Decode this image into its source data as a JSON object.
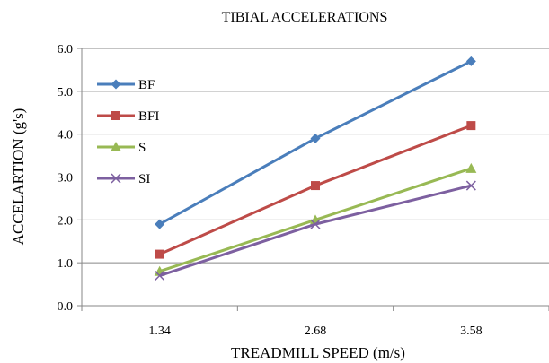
{
  "chart_data": {
    "type": "line",
    "title": "TIBIAL ACCELERATIONS",
    "xlabel": "TREADMILL SPEED (m/s)",
    "ylabel": "ACCELARTION (g's)",
    "categories": [
      "1.34",
      "2.68",
      "3.58"
    ],
    "ylim": [
      0,
      6
    ],
    "yticks": [
      "0.0",
      "1.0",
      "2.0",
      "3.0",
      "4.0",
      "5.0",
      "6.0"
    ],
    "grid": true,
    "legend": "top-left",
    "series": [
      {
        "name": "BF",
        "values": [
          1.9,
          3.9,
          5.7
        ],
        "color": "#4a7ebb",
        "marker": "diamond"
      },
      {
        "name": "BFI",
        "values": [
          1.2,
          2.8,
          4.2
        ],
        "color": "#be4b48",
        "marker": "square"
      },
      {
        "name": "S",
        "values": [
          0.8,
          2.0,
          3.2
        ],
        "color": "#98b954",
        "marker": "triangle"
      },
      {
        "name": "SI",
        "values": [
          0.7,
          1.9,
          2.8
        ],
        "color": "#7d60a0",
        "marker": "x"
      }
    ]
  }
}
